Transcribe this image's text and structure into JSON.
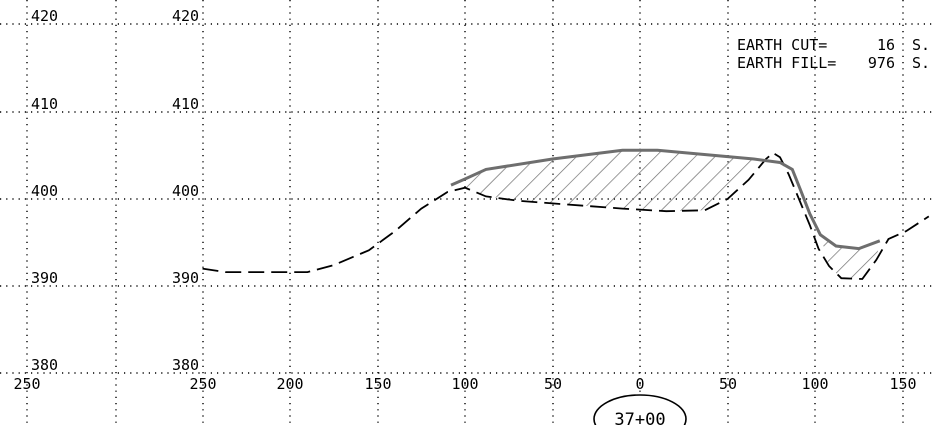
{
  "quantities": {
    "cut_label": "EARTH CUT=",
    "cut_value": "16",
    "cut_unit": "S.",
    "fill_label": "EARTH FILL=",
    "fill_value": "976",
    "fill_unit": "S."
  },
  "station_label": "37+00",
  "elevation_labels_left": [
    "420",
    "410",
    "400",
    "390",
    "380"
  ],
  "elevation_labels_right": [
    "420",
    "410",
    "400",
    "390",
    "380"
  ],
  "offset_labels": [
    "250",
    "250",
    "200",
    "150",
    "100",
    "50",
    "0",
    "50",
    "100",
    "150"
  ],
  "colors": {
    "grid": "#000000",
    "existing_ground": "#000000",
    "proposed_section": "#6e6e6e",
    "hatch": "#6e6e6e"
  },
  "chart_data": {
    "type": "line",
    "xlim": [
      -250,
      165
    ],
    "ylim": [
      380,
      423
    ],
    "series": [
      {
        "style": "dashed",
        "color": "#000000",
        "points": [
          [
            -250,
            392.0
          ],
          [
            -237,
            391.6
          ],
          [
            -215,
            391.6
          ],
          [
            -190,
            391.6
          ],
          [
            -175,
            392.4
          ],
          [
            -155,
            394.1
          ],
          [
            -140,
            396.3
          ],
          [
            -125,
            398.9
          ],
          [
            -110,
            400.8
          ],
          [
            -100,
            401.3
          ],
          [
            -88,
            400.3
          ],
          [
            -70,
            399.8
          ],
          [
            -50,
            399.5
          ],
          [
            -30,
            399.2
          ],
          [
            -10,
            398.9
          ],
          [
            15,
            398.6
          ],
          [
            37,
            398.7
          ],
          [
            50,
            400.0
          ],
          [
            62,
            402.2
          ],
          [
            72,
            404.6
          ],
          [
            76,
            405.3
          ],
          [
            80,
            404.8
          ],
          [
            85,
            402.8
          ],
          [
            90,
            400.4
          ],
          [
            97,
            397.0
          ],
          [
            102,
            394.3
          ],
          [
            108,
            392.3
          ],
          [
            115,
            390.9
          ],
          [
            127,
            390.8
          ],
          [
            135,
            393.0
          ],
          [
            142,
            395.4
          ],
          [
            152,
            396.3
          ],
          [
            165,
            398.0
          ]
        ]
      },
      {
        "style": "solid",
        "color": "#6e6e6e",
        "points": [
          [
            -108,
            401.6
          ],
          [
            -100,
            402.3
          ],
          [
            -88,
            403.4
          ],
          [
            -50,
            404.6
          ],
          [
            -10,
            405.6
          ],
          [
            10,
            405.6
          ],
          [
            65,
            404.6
          ],
          [
            80,
            404.2
          ],
          [
            87,
            403.4
          ],
          [
            92,
            400.9
          ],
          [
            97,
            398.3
          ],
          [
            103,
            395.9
          ],
          [
            112,
            394.6
          ],
          [
            125,
            394.3
          ],
          [
            137,
            395.2
          ]
        ]
      }
    ]
  }
}
